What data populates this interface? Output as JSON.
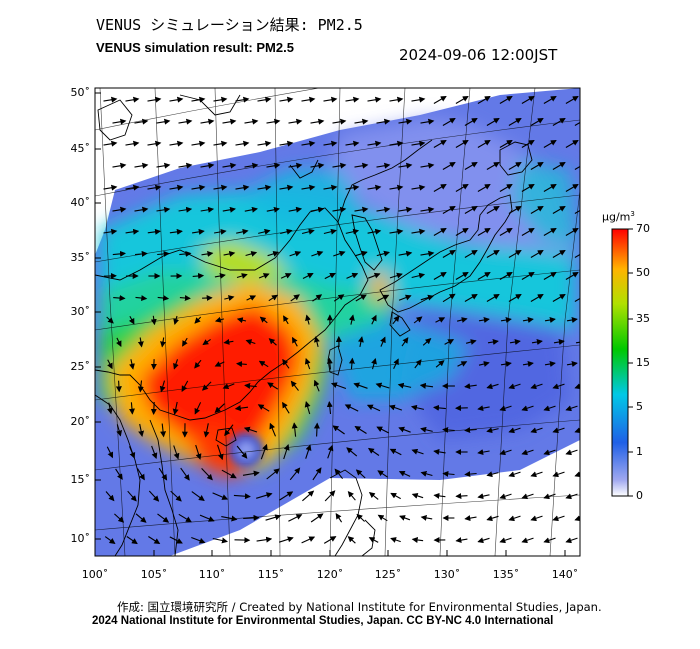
{
  "header": {
    "title_ja": "VENUS シミュレーション結果: PM2.5",
    "title_en": "VENUS simulation result: PM2.5",
    "timestamp": "2024-09-06 12:00JST"
  },
  "footer": {
    "credit": "作成: 国立環境研究所 / Created by National Institute for Environmental Studies, Japan.",
    "copyright": "2024 National Institute for Environmental Studies, Japan. CC BY-NC 4.0 International"
  },
  "map": {
    "lon_range": [
      100,
      140
    ],
    "lat_range": [
      9,
      51
    ],
    "x_ticks": [
      "100˚",
      "105˚",
      "110˚",
      "115˚",
      "120˚",
      "125˚",
      "130˚",
      "135˚",
      "140˚"
    ],
    "y_ticks": [
      "50˚",
      "45˚",
      "40˚",
      "35˚",
      "30˚",
      "25˚",
      "20˚",
      "15˚",
      "10˚"
    ],
    "typhoon_center": {
      "lon": 112.3,
      "lat": 18.2
    },
    "wind_field": "cyclonic circulation around typhoon in South China Sea; westerlies over Japan"
  },
  "colorbar": {
    "unit": "µg/m3",
    "unit_base": "µg/m",
    "unit_exp": "3",
    "ticks": [
      "70",
      "50",
      "35",
      "15",
      "5",
      "1",
      "0"
    ],
    "colors": [
      "#ff0000",
      "#ffb300",
      "#00c800",
      "#00d2e6",
      "#1e50e6",
      "#a0a8f0",
      "#ffffff"
    ]
  }
}
